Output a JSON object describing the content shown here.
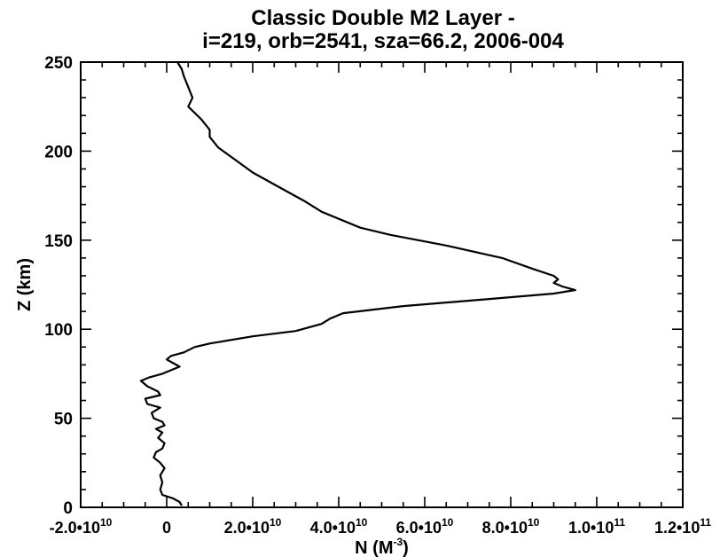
{
  "chart_data": {
    "type": "line",
    "title_lines": [
      "Classic Double M2 Layer -",
      "i=219, orb=2541, sza=66.2, 2006-004"
    ],
    "xlabel": {
      "base": "N (M",
      "sup": "-3",
      "suffix": ")"
    },
    "ylabel": "Z (km)",
    "xlim": [
      -20000000000.0,
      120000000000.0
    ],
    "ylim": [
      0,
      250
    ],
    "x_ticks": [
      {
        "value": -20000000000.0,
        "mantissa": "-2.0",
        "exp": "10"
      },
      {
        "value": 0,
        "mantissa": "0",
        "exp": ""
      },
      {
        "value": 20000000000.0,
        "mantissa": "2.0",
        "exp": "10"
      },
      {
        "value": 40000000000.0,
        "mantissa": "4.0",
        "exp": "10"
      },
      {
        "value": 60000000000.0,
        "mantissa": "6.0",
        "exp": "10"
      },
      {
        "value": 80000000000.0,
        "mantissa": "8.0",
        "exp": "10"
      },
      {
        "value": 100000000000.0,
        "mantissa": "1.0",
        "exp": "11"
      },
      {
        "value": 120000000000.0,
        "mantissa": "1.2",
        "exp": "11"
      }
    ],
    "x_minor_step": 5000000000.0,
    "y_ticks": [
      0,
      50,
      100,
      150,
      200,
      250
    ],
    "y_minor_step": 10,
    "grid": false,
    "line_color": "#000000",
    "series": [
      {
        "points": [
          [
            3500000000.0,
            1
          ],
          [
            3000000000.0,
            3
          ],
          [
            1500000000.0,
            5
          ],
          [
            -1000000000.0,
            7
          ],
          [
            -1500000000.0,
            10
          ],
          [
            -1000000000.0,
            14
          ],
          [
            -1500000000.0,
            18
          ],
          [
            -500000000.0,
            22
          ],
          [
            -1500000000.0,
            25
          ],
          [
            -3000000000.0,
            28
          ],
          [
            -2500000000.0,
            31
          ],
          [
            -1000000000.0,
            33
          ],
          [
            -500000000.0,
            36
          ],
          [
            -2000000000.0,
            39
          ],
          [
            -1000000000.0,
            42
          ],
          [
            -2500000000.0,
            44
          ],
          [
            -500000000.0,
            46
          ],
          [
            -1000000000.0,
            48
          ],
          [
            -3000000000.0,
            50
          ],
          [
            -3500000000.0,
            53
          ],
          [
            -1500000000.0,
            56
          ],
          [
            -4500000000.0,
            58
          ],
          [
            -5000000000.0,
            61
          ],
          [
            -1500000000.0,
            63
          ],
          [
            -2000000000.0,
            65
          ],
          [
            -4500000000.0,
            68
          ],
          [
            -6000000000.0,
            71
          ],
          [
            -4000000000.0,
            73
          ],
          [
            -1000000000.0,
            75
          ],
          [
            1000000000.0,
            77
          ],
          [
            3000000000.0,
            79
          ],
          [
            1500000000.0,
            81
          ],
          [
            0.0,
            83
          ],
          [
            1000000000.0,
            85
          ],
          [
            4000000000.0,
            87
          ],
          [
            6500000000.0,
            90
          ],
          [
            10000000000.0,
            92
          ],
          [
            20000000000.0,
            96
          ],
          [
            30000000000.0,
            99
          ],
          [
            36000000000.0,
            103
          ],
          [
            38000000000.0,
            106
          ],
          [
            41000000000.0,
            109
          ],
          [
            55000000000.0,
            113
          ],
          [
            75000000000.0,
            117
          ],
          [
            90000000000.0,
            120
          ],
          [
            95000000000.0,
            122
          ],
          [
            92000000000.0,
            124
          ],
          [
            90000000000.0,
            126
          ],
          [
            91000000000.0,
            128
          ],
          [
            90000000000.0,
            130
          ],
          [
            85000000000.0,
            134
          ],
          [
            78000000000.0,
            140
          ],
          [
            65000000000.0,
            147
          ],
          [
            52000000000.0,
            153
          ],
          [
            45000000000.0,
            157
          ],
          [
            40000000000.0,
            162
          ],
          [
            36000000000.0,
            166
          ],
          [
            32000000000.0,
            172
          ],
          [
            26000000000.0,
            180
          ],
          [
            20000000000.0,
            188
          ],
          [
            16000000000.0,
            195
          ],
          [
            12000000000.0,
            202
          ],
          [
            10000000000.0,
            208
          ],
          [
            10000000000.0,
            212
          ],
          [
            8000000000.0,
            218
          ],
          [
            5000000000.0,
            225
          ],
          [
            6000000000.0,
            230
          ],
          [
            5000000000.0,
            236
          ],
          [
            4000000000.0,
            242
          ],
          [
            3500000000.0,
            246
          ],
          [
            2500000000.0,
            250
          ]
        ]
      }
    ]
  }
}
